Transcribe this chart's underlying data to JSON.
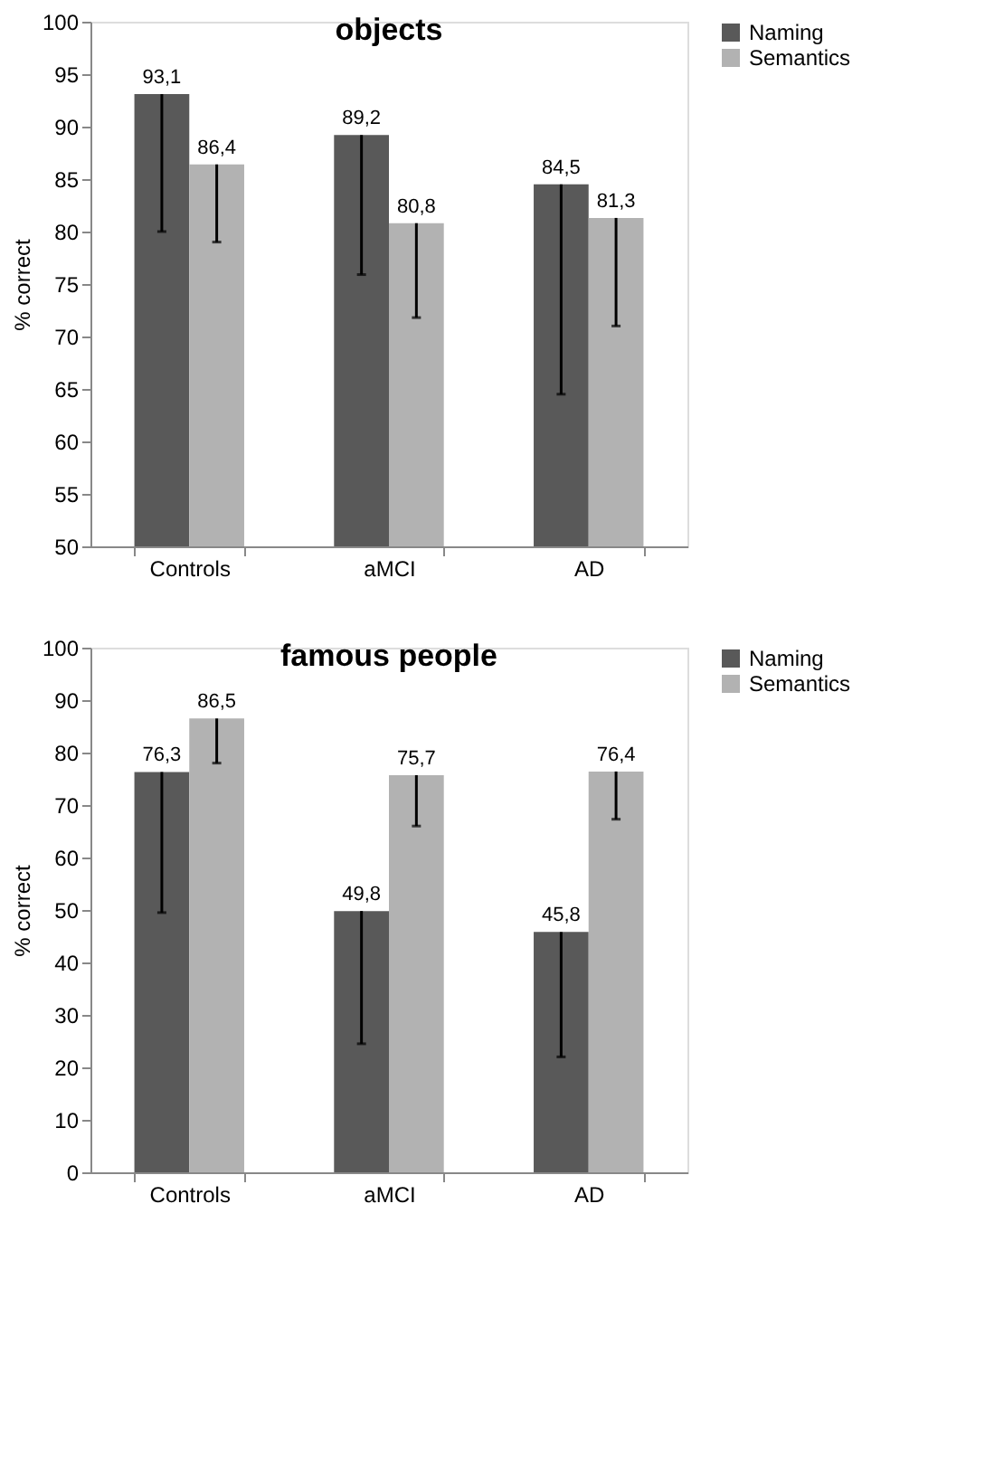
{
  "chart_data": [
    {
      "type": "bar",
      "title": "objects",
      "ylabel": "% correct",
      "categories": [
        "Controls",
        "aMCI",
        "AD"
      ],
      "ylim": [
        50,
        100
      ],
      "yticks": [
        50,
        55,
        60,
        65,
        70,
        75,
        80,
        85,
        90,
        95,
        100
      ],
      "grid": false,
      "legend": "right",
      "series": [
        {
          "name": "Naming",
          "color": "#595959",
          "values": [
            93.1,
            89.2,
            84.5
          ],
          "value_labels": [
            "93,1",
            "89,2",
            "84,5"
          ],
          "errors": [
            [
              80,
              93.1
            ],
            [
              75.9,
              89.2
            ],
            [
              64.5,
              84.5
            ]
          ]
        },
        {
          "name": "Semantics",
          "color": "#b2b2b2",
          "values": [
            86.4,
            80.8,
            81.3
          ],
          "value_labels": [
            "86,4",
            "80,8",
            "81,3"
          ],
          "errors": [
            [
              79,
              86.4
            ],
            [
              71.8,
              80.8
            ],
            [
              71,
              81.3
            ]
          ]
        }
      ]
    },
    {
      "type": "bar",
      "title": "famous people",
      "ylabel": "% correct",
      "categories": [
        "Controls",
        "aMCI",
        "AD"
      ],
      "ylim": [
        0,
        100
      ],
      "yticks": [
        0,
        10,
        20,
        30,
        40,
        50,
        60,
        70,
        80,
        90,
        100
      ],
      "grid": false,
      "legend": "right",
      "series": [
        {
          "name": "Naming",
          "color": "#595959",
          "values": [
            76.3,
            49.8,
            45.8
          ],
          "value_labels": [
            "76,3",
            "49,8",
            "45,8"
          ],
          "errors": [
            [
              49.5,
              76.3
            ],
            [
              24.5,
              49.8
            ],
            [
              22,
              45.8
            ]
          ]
        },
        {
          "name": "Semantics",
          "color": "#b2b2b2",
          "values": [
            86.5,
            75.7,
            76.4
          ],
          "value_labels": [
            "86,5",
            "75,7",
            "76,4"
          ],
          "errors": [
            [
              78,
              86.5
            ],
            [
              66,
              75.7
            ],
            [
              67.3,
              76.4
            ]
          ]
        }
      ]
    }
  ]
}
